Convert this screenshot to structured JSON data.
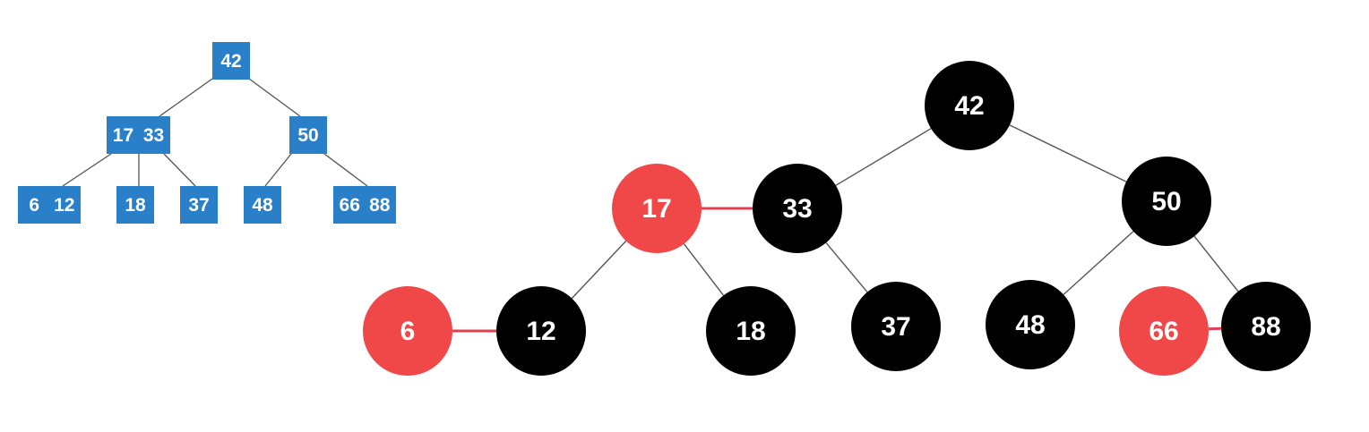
{
  "colors": {
    "btree_node": "#2a7fc9",
    "btree_text": "#ffffff",
    "rb_black": "#000000",
    "rb_red": "#f04848",
    "rb_text": "#ffffff",
    "edge": "#555555",
    "red_link": "#e04050"
  },
  "btree": {
    "nodes": [
      {
        "id": "b42",
        "keys": [
          "42"
        ]
      },
      {
        "id": "b1733",
        "keys": [
          "17",
          "33"
        ]
      },
      {
        "id": "b50",
        "keys": [
          "50"
        ]
      },
      {
        "id": "b612",
        "keys": [
          "6",
          "12"
        ]
      },
      {
        "id": "b18",
        "keys": [
          "18"
        ]
      },
      {
        "id": "b37",
        "keys": [
          "37"
        ]
      },
      {
        "id": "b48",
        "keys": [
          "48"
        ]
      },
      {
        "id": "b6688",
        "keys": [
          "66",
          "88"
        ]
      }
    ],
    "edges": [
      [
        "b42",
        "b1733"
      ],
      [
        "b42",
        "b50"
      ],
      [
        "b1733",
        "b612"
      ],
      [
        "b1733",
        "b18"
      ],
      [
        "b1733",
        "b37"
      ],
      [
        "b50",
        "b48"
      ],
      [
        "b50",
        "b6688"
      ]
    ]
  },
  "rbtree": {
    "nodes": [
      {
        "id": "r42",
        "label": "42",
        "color": "black"
      },
      {
        "id": "r17",
        "label": "17",
        "color": "red"
      },
      {
        "id": "r33",
        "label": "33",
        "color": "black"
      },
      {
        "id": "r50",
        "label": "50",
        "color": "black"
      },
      {
        "id": "r6",
        "label": "6",
        "color": "red"
      },
      {
        "id": "r12",
        "label": "12",
        "color": "black"
      },
      {
        "id": "r18",
        "label": "18",
        "color": "black"
      },
      {
        "id": "r37",
        "label": "37",
        "color": "black"
      },
      {
        "id": "r48",
        "label": "48",
        "color": "black"
      },
      {
        "id": "r66",
        "label": "66",
        "color": "red"
      },
      {
        "id": "r88",
        "label": "88",
        "color": "black"
      }
    ],
    "edges": [
      {
        "from": "r42",
        "to": "r33",
        "kind": "normal"
      },
      {
        "from": "r42",
        "to": "r50",
        "kind": "normal"
      },
      {
        "from": "r17",
        "to": "r33",
        "kind": "red"
      },
      {
        "from": "r17",
        "to": "r12",
        "kind": "normal"
      },
      {
        "from": "r17",
        "to": "r18",
        "kind": "normal"
      },
      {
        "from": "r33",
        "to": "r37",
        "kind": "normal"
      },
      {
        "from": "r50",
        "to": "r48",
        "kind": "normal"
      },
      {
        "from": "r50",
        "to": "r88",
        "kind": "normal"
      },
      {
        "from": "r6",
        "to": "r12",
        "kind": "red"
      },
      {
        "from": "r66",
        "to": "r88",
        "kind": "red"
      }
    ]
  }
}
